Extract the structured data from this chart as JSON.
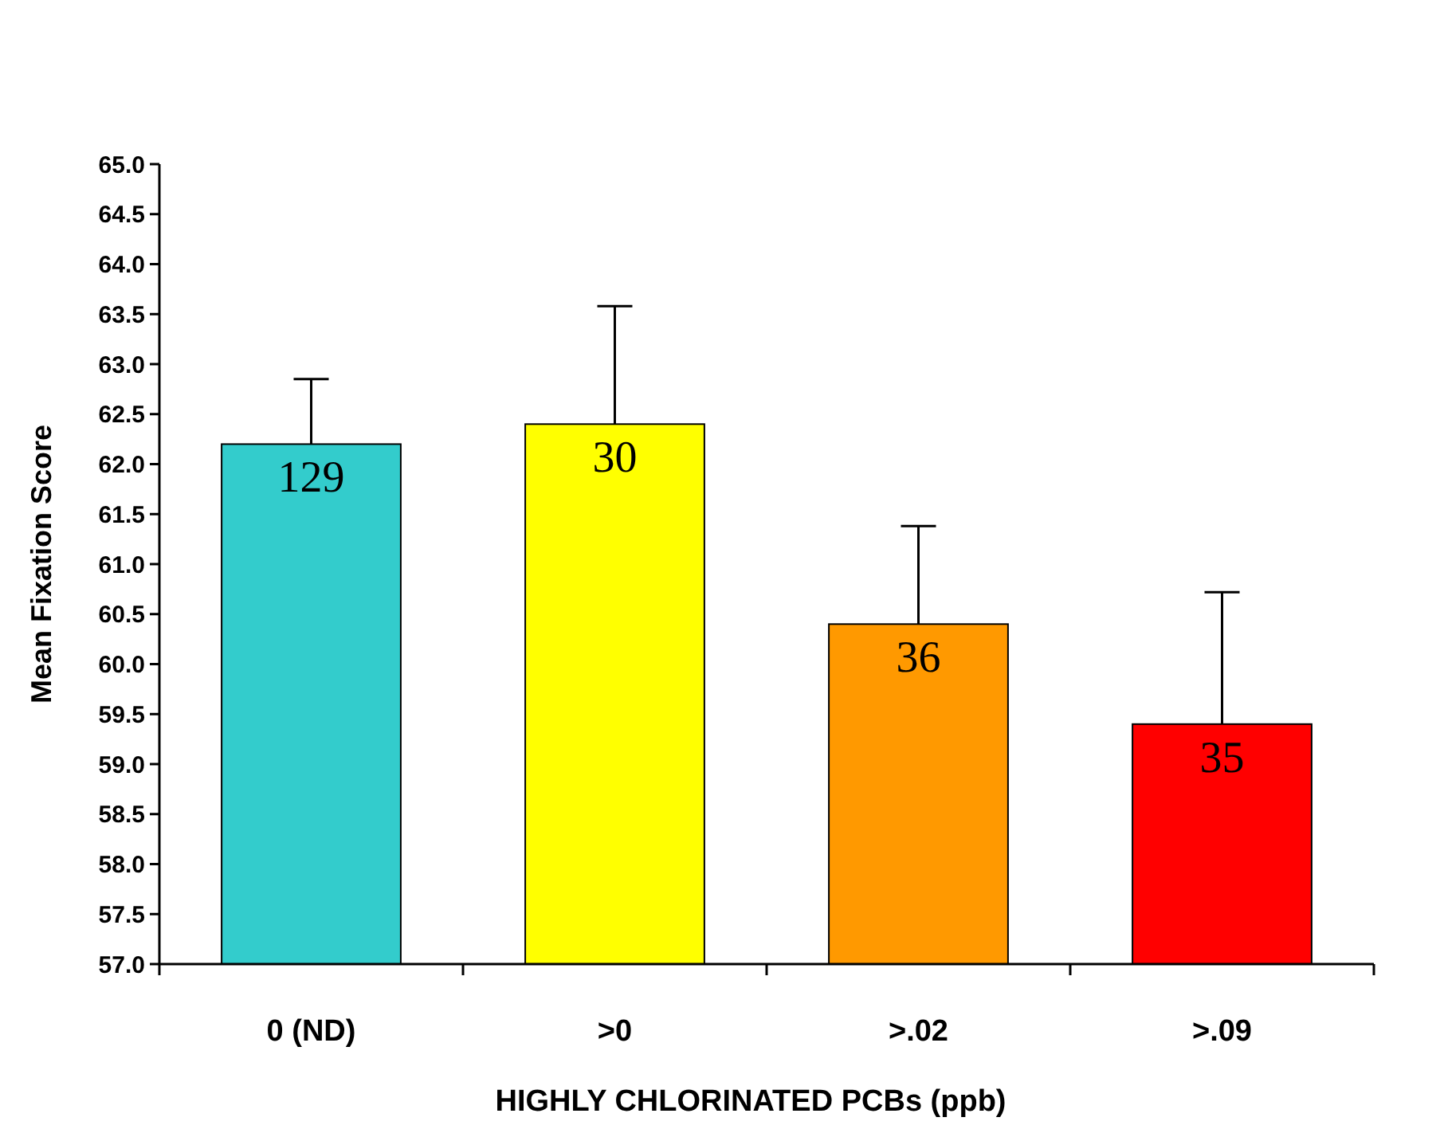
{
  "chart_data": {
    "type": "bar",
    "xlabel": "HIGHLY CHLORINATED PCBs (ppb)",
    "ylabel": "Mean Fixation Score",
    "categories": [
      "0 (ND)",
      ">0",
      ">.02",
      ">.09"
    ],
    "values": [
      62.2,
      62.4,
      60.4,
      59.4
    ],
    "colors": [
      "#33cccc",
      "#ffff00",
      "#ff9900",
      "#ff0000"
    ],
    "errors": [
      [
        62.2,
        62.85
      ],
      [
        62.4,
        63.58
      ],
      [
        60.4,
        61.38
      ],
      [
        59.4,
        60.72
      ]
    ],
    "ylim": [
      57,
      65
    ],
    "yticks": [
      {
        "value": 57,
        "label": "57.0"
      },
      {
        "value": 57.5,
        "label": "57.5"
      },
      {
        "value": 58,
        "label": "58.0"
      },
      {
        "value": 58.5,
        "label": "58.5"
      },
      {
        "value": 59,
        "label": "59.0"
      },
      {
        "value": 59.5,
        "label": "59.5"
      },
      {
        "value": 60,
        "label": "60.0"
      },
      {
        "value": 60.5,
        "label": "60.5"
      },
      {
        "value": 61,
        "label": "61.0"
      },
      {
        "value": 61.5,
        "label": "61.5"
      },
      {
        "value": 62,
        "label": "62.0"
      },
      {
        "value": 62.5,
        "label": "62.5"
      },
      {
        "value": 63,
        "label": "63.0"
      },
      {
        "value": 63.5,
        "label": "63.5"
      },
      {
        "value": 64,
        "label": "64.0"
      },
      {
        "value": 64.5,
        "label": "64.5"
      },
      {
        "value": 65,
        "label": "65.0"
      }
    ],
    "annotations": [
      {
        "text": "129",
        "x": "0 (ND)",
        "y": 62.2
      },
      {
        "text": "30",
        "x": ">0",
        "y": 62.4
      },
      {
        "text": "36",
        "x": ">.02",
        "y": 60.4
      },
      {
        "text": "35",
        "x": ">.09",
        "y": 59.4
      }
    ],
    "grid": false
  }
}
